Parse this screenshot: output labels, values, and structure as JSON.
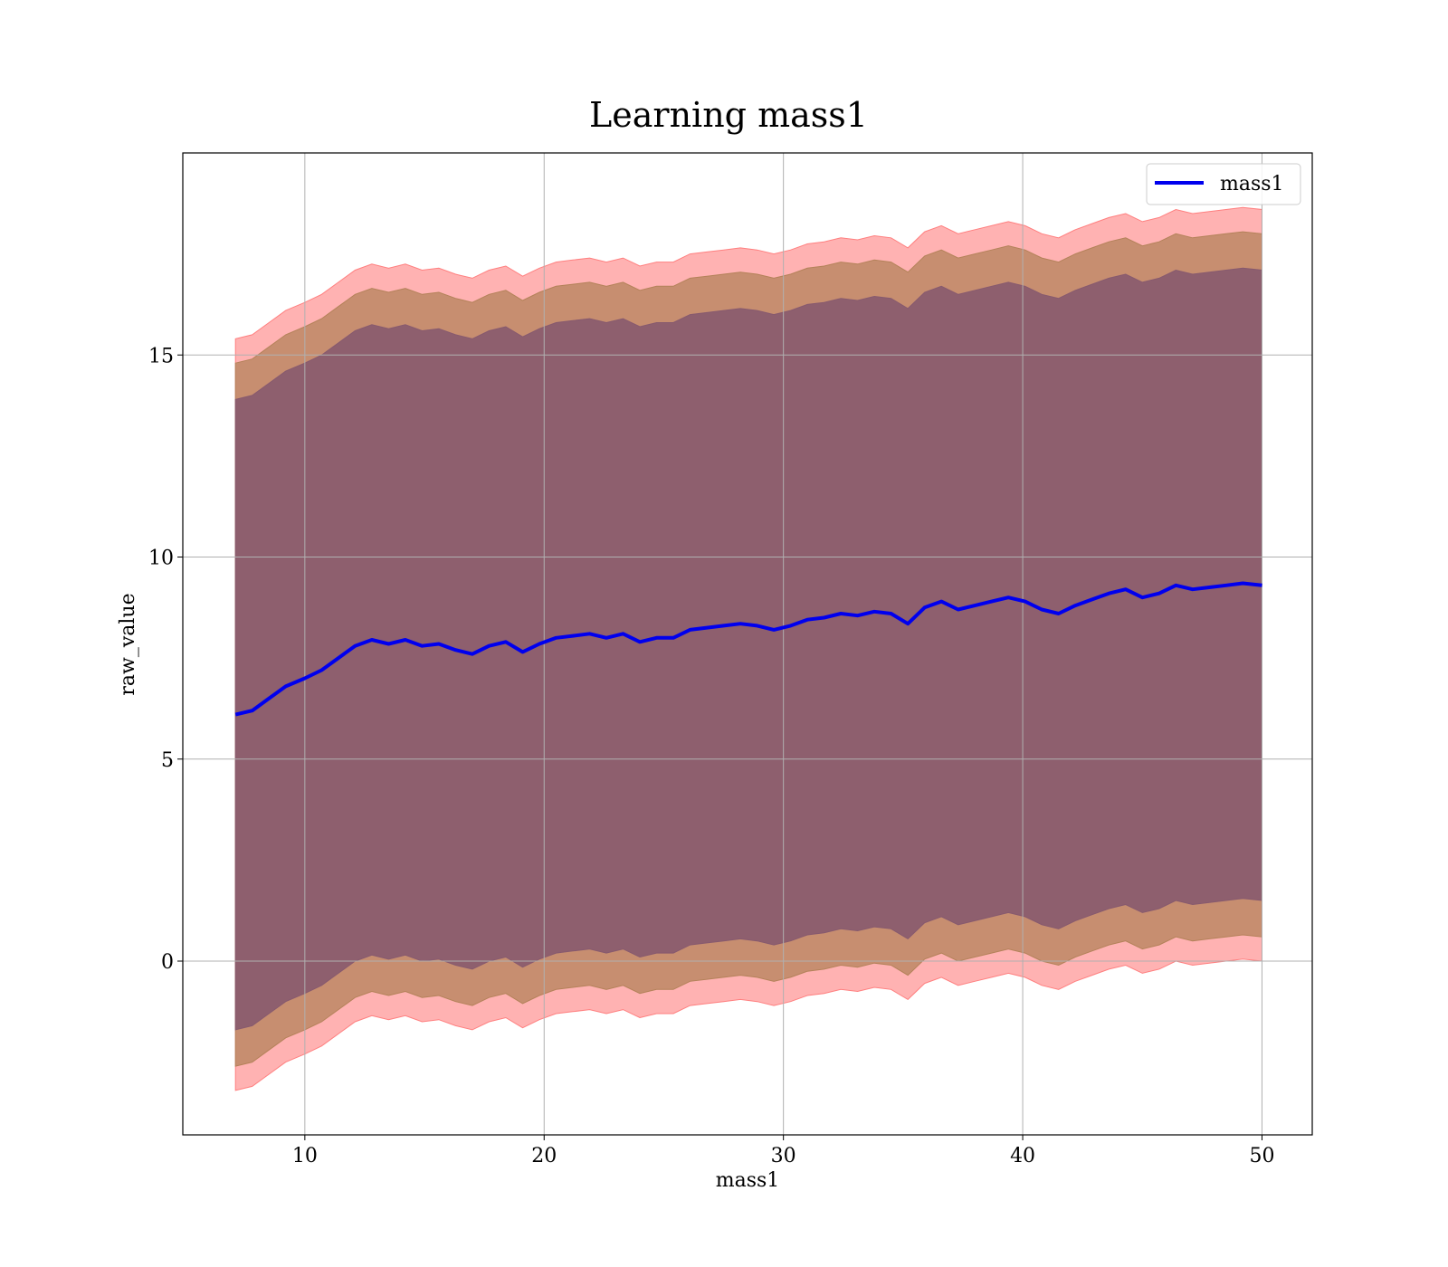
{
  "chart_data": {
    "type": "line",
    "title": "Learning mass1",
    "xlabel": "mass1",
    "ylabel": "raw_value",
    "xlim": [
      4.9,
      52.1
    ],
    "ylim": [
      -4.3,
      20.0
    ],
    "xticks": [
      10,
      20,
      30,
      40,
      50
    ],
    "yticks": [
      0,
      5,
      10,
      15
    ],
    "grid": true,
    "legend": {
      "position": "top-right",
      "entries": [
        "mass1"
      ]
    },
    "colors": {
      "line": "#0000ee",
      "band_outer": "#ff7f7f",
      "band_middle": "#b4825a",
      "band_inner": "#875a6e"
    },
    "series": [
      {
        "name": "mass1",
        "x": [
          7.1,
          7.8,
          8.5,
          9.2,
          10.0,
          10.7,
          11.4,
          12.1,
          12.8,
          13.5,
          14.2,
          14.9,
          15.6,
          16.3,
          17.0,
          17.7,
          18.4,
          19.1,
          19.8,
          20.5,
          21.2,
          21.9,
          22.6,
          23.3,
          24.0,
          24.7,
          25.4,
          26.1,
          26.8,
          27.5,
          28.2,
          28.9,
          29.6,
          30.3,
          31.0,
          31.7,
          32.4,
          33.1,
          33.8,
          34.5,
          35.2,
          35.9,
          36.6,
          37.3,
          38.0,
          38.7,
          39.4,
          40.1,
          40.8,
          41.5,
          42.2,
          42.9,
          43.6,
          44.3,
          45.0,
          45.7,
          46.4,
          47.1,
          47.8,
          48.5,
          49.2,
          50.0
        ],
        "y": [
          6.1,
          6.2,
          6.5,
          6.8,
          7.0,
          7.2,
          7.5,
          7.8,
          7.95,
          7.85,
          7.95,
          7.8,
          7.85,
          7.7,
          7.6,
          7.8,
          7.9,
          7.65,
          7.85,
          8.0,
          8.05,
          8.1,
          8.0,
          8.1,
          7.9,
          8.0,
          8.0,
          8.2,
          8.25,
          8.3,
          8.35,
          8.3,
          8.2,
          8.3,
          8.45,
          8.5,
          8.6,
          8.55,
          8.65,
          8.6,
          8.35,
          8.75,
          8.9,
          8.7,
          8.8,
          8.9,
          9.0,
          8.9,
          8.7,
          8.6,
          8.8,
          8.95,
          9.1,
          9.2,
          9.0,
          9.1,
          9.3,
          9.2,
          9.25,
          9.3,
          9.35,
          9.3
        ],
        "bands": [
          {
            "name": "outer",
            "upper_offset": 9.3,
            "lower_offset": -9.3
          },
          {
            "name": "middle",
            "upper_offset": 8.7,
            "lower_offset": -8.7
          },
          {
            "name": "inner",
            "upper_offset": 7.8,
            "lower_offset": -7.8
          }
        ]
      }
    ]
  }
}
